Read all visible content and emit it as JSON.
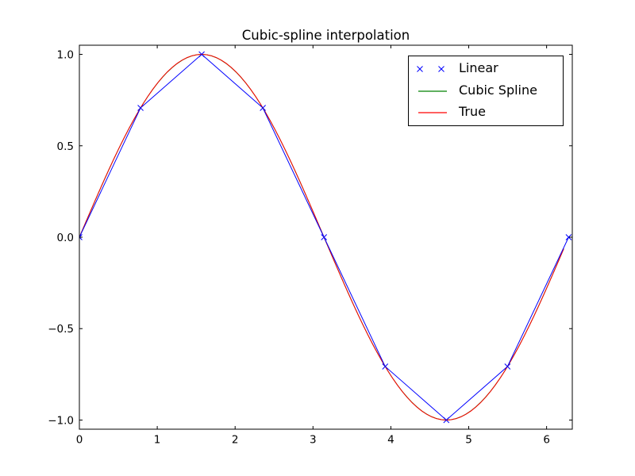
{
  "figure": {
    "background": "#ffffff",
    "frame_color": "#000000",
    "tick_label_color": "#000000"
  },
  "chart_data": {
    "type": "line",
    "title": "Cubic-spline interpolation",
    "xlabel": "",
    "ylabel": "",
    "xlim": [
      0,
      6.33
    ],
    "ylim": [
      -1.05,
      1.05
    ],
    "grid": false,
    "x_ticks": [
      0,
      1,
      2,
      3,
      4,
      5,
      6
    ],
    "x_tick_labels": [
      "0",
      "1",
      "2",
      "3",
      "4",
      "5",
      "6"
    ],
    "y_ticks": [
      -1.0,
      -0.5,
      0.0,
      0.5,
      1.0
    ],
    "y_tick_labels": [
      "−1.0",
      "−0.5",
      "0.0",
      "0.5",
      "1.0"
    ],
    "legend": {
      "position": "upper right",
      "entries": [
        {
          "label": "Linear",
          "handle": "two-x-markers",
          "color": "#0000ff"
        },
        {
          "label": "Cubic Spline",
          "handle": "line",
          "color": "#008000"
        },
        {
          "label": "True",
          "handle": "line",
          "color": "#ff0000"
        }
      ]
    },
    "series": [
      {
        "name": "Linear",
        "role": "knot-points-with-x-markers-joined-by-straight-lines",
        "color": "#0000ff",
        "marker": "x",
        "marker_size": 7,
        "x": [
          0.0,
          0.7854,
          1.5708,
          2.3562,
          3.1416,
          3.927,
          4.7124,
          5.4978,
          6.2832
        ],
        "y": [
          0.0,
          0.7071,
          1.0,
          0.7071,
          0.0,
          -0.7071,
          -1.0,
          -0.7071,
          0.0
        ]
      },
      {
        "name": "Cubic Spline",
        "role": "cubic-spline-through-knots",
        "color": "#008000",
        "x_start": 0.0,
        "x_end": 6.2204,
        "samples": 100
      },
      {
        "name": "True",
        "role": "sine-function",
        "color": "#ff0000",
        "x_start": 0.0,
        "x_end": 6.2204,
        "samples": 100
      }
    ]
  }
}
